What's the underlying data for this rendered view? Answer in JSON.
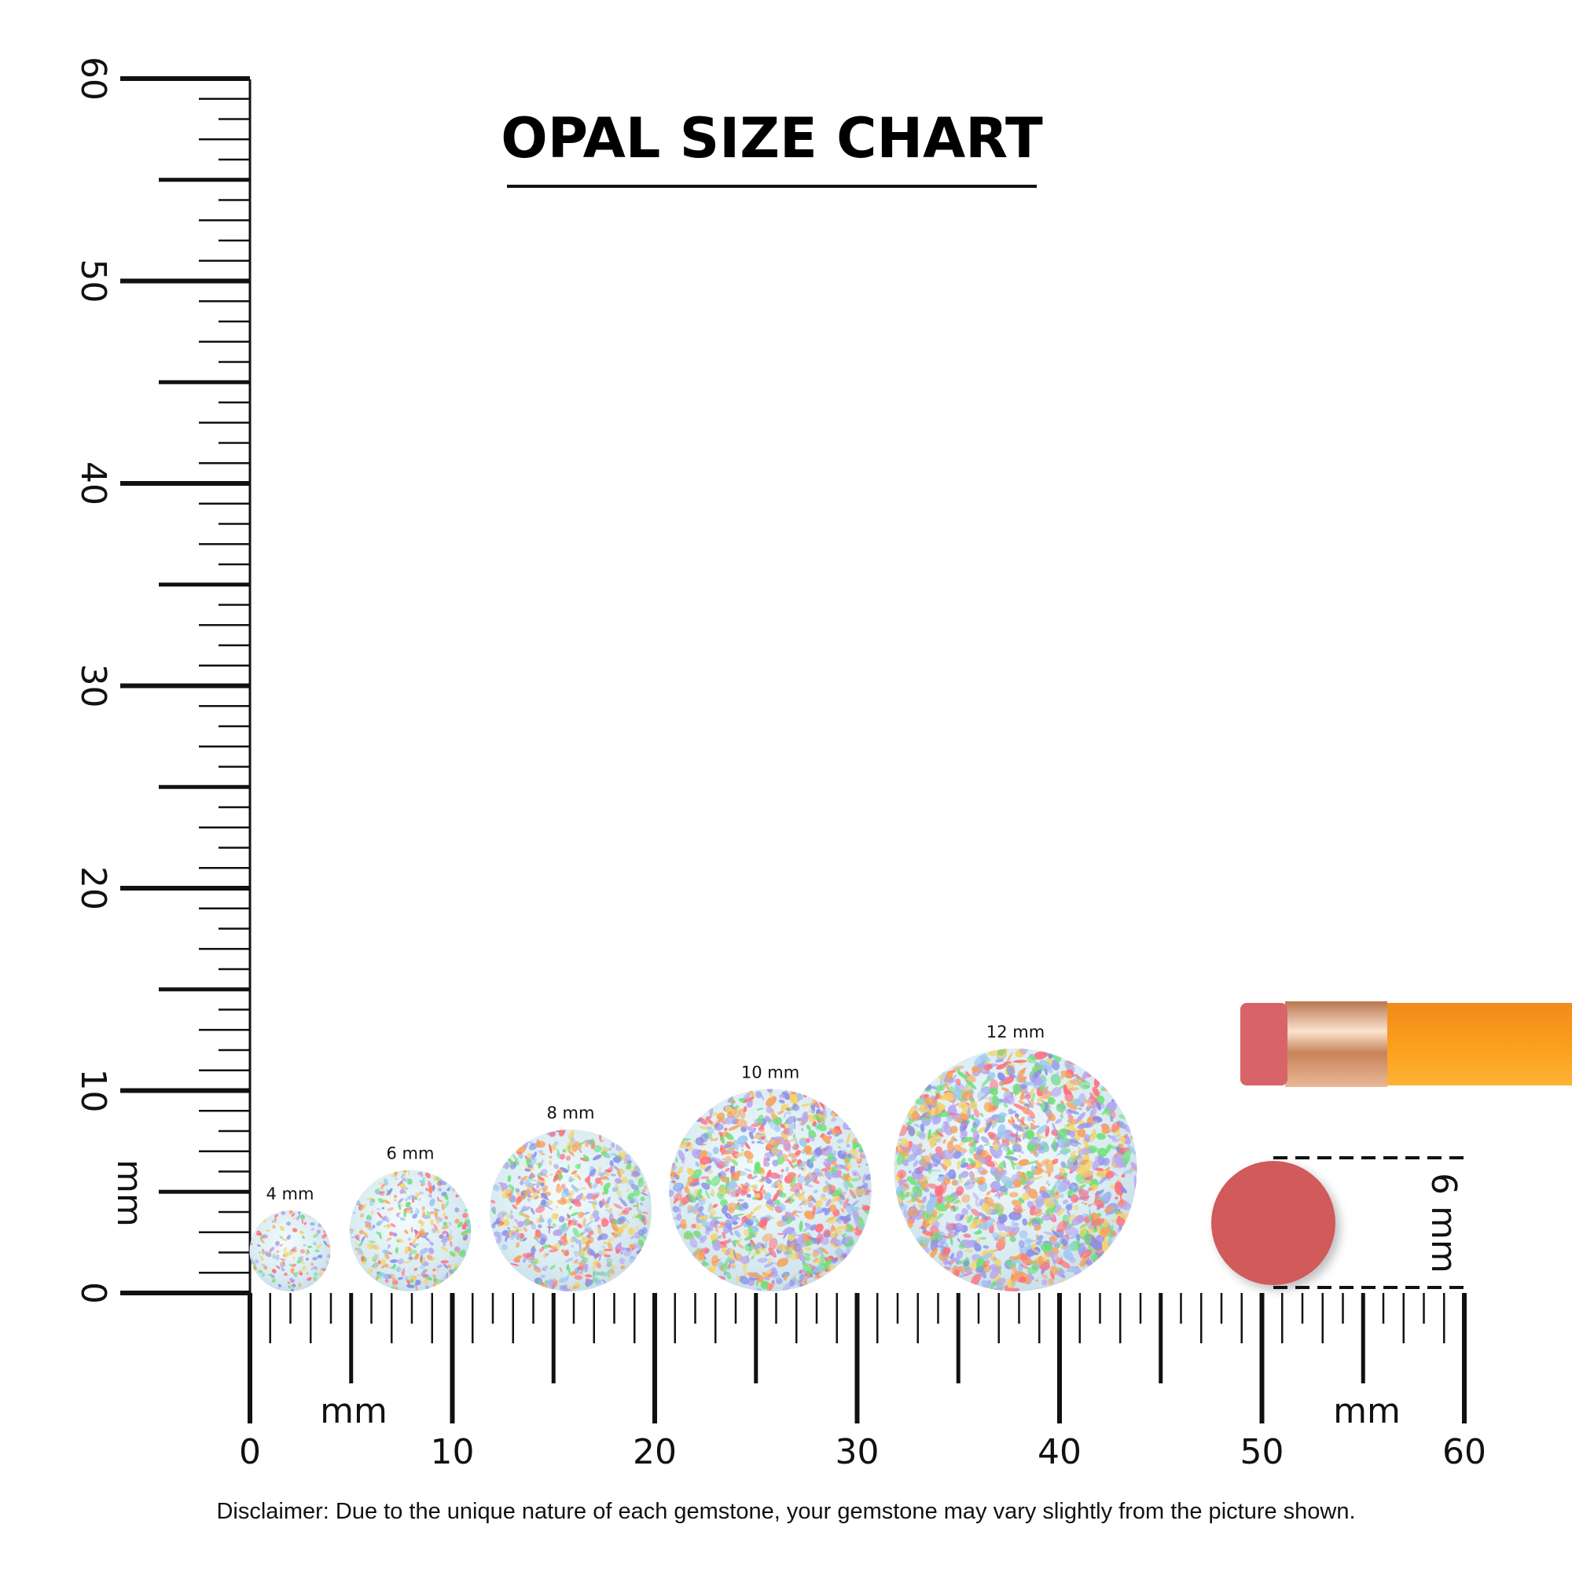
{
  "title": "OPAL SIZE CHART",
  "unit_label": "mm",
  "ruler": {
    "x_labels": [
      "0",
      "10",
      "20",
      "30",
      "40",
      "50",
      "60"
    ],
    "y_labels": [
      "0",
      "10",
      "20",
      "30",
      "40",
      "50",
      "60"
    ],
    "range_mm": [
      0,
      60
    ]
  },
  "opals": [
    {
      "label": "4 mm",
      "size_mm": 4
    },
    {
      "label": "6 mm",
      "size_mm": 6
    },
    {
      "label": "8 mm",
      "size_mm": 8
    },
    {
      "label": "10 mm",
      "size_mm": 10
    },
    {
      "label": "12 mm",
      "size_mm": 12
    }
  ],
  "reference": {
    "label": "6 mm",
    "object": "pencil eraser",
    "size_mm": 6
  },
  "disclaimer": "Disclaimer: Due to the unique nature of each gemstone, your gemstone may vary slightly from the picture shown.",
  "colors": {
    "eraser": "#d15a5a",
    "pencil": "#f7941d",
    "ferrule": "#d9a07a",
    "opal_base": "#dcecf2"
  }
}
